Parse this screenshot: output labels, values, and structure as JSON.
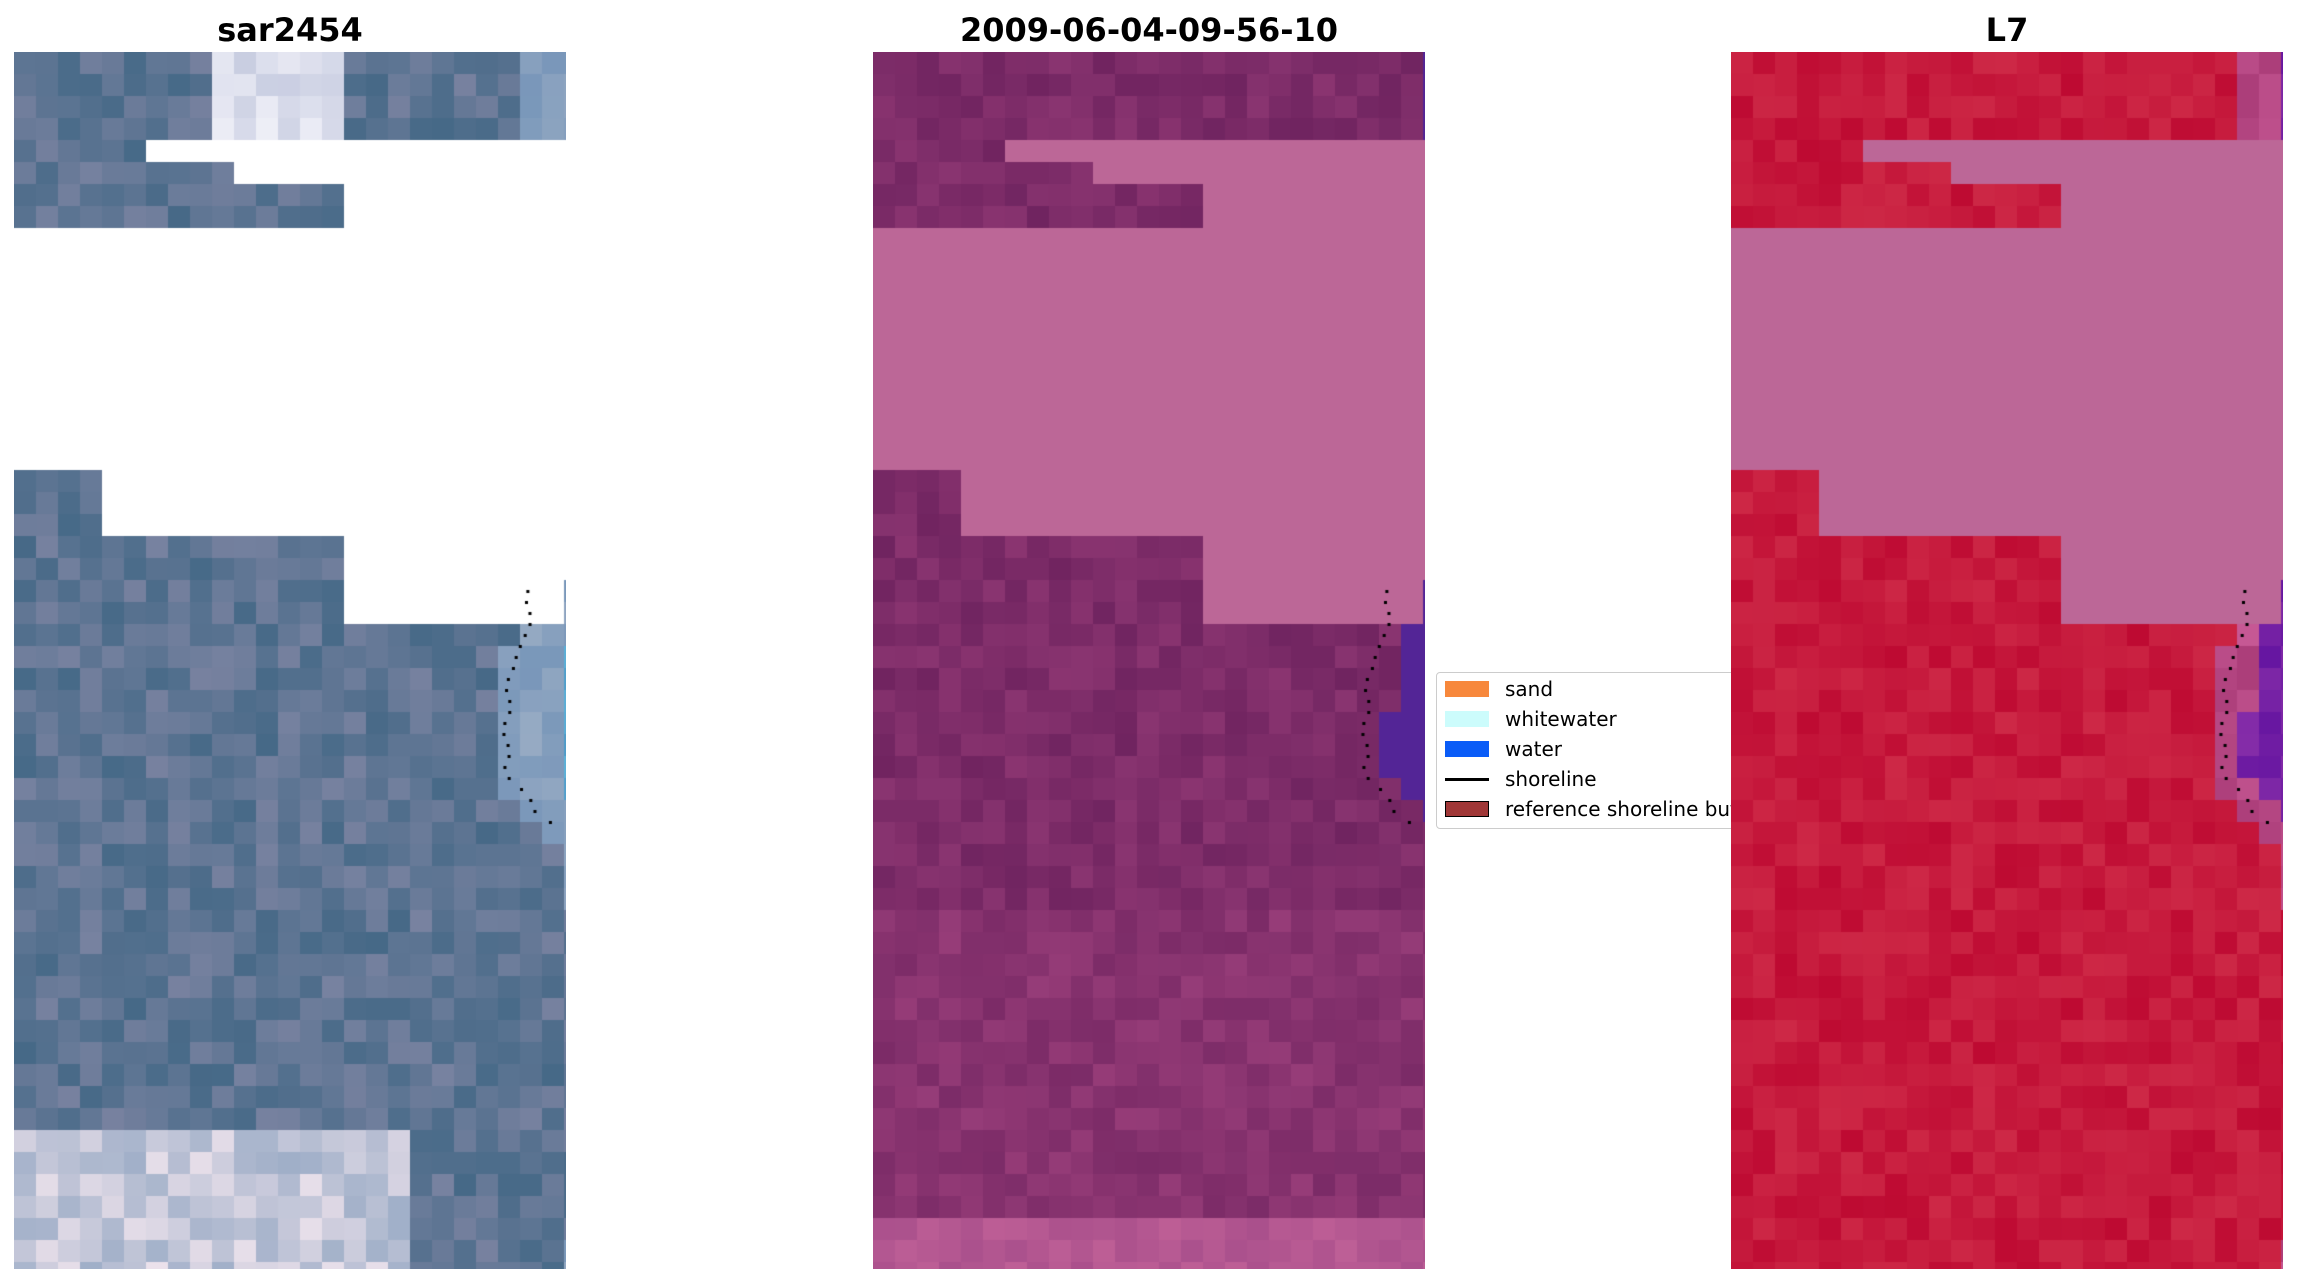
{
  "panels": [
    {
      "title": "sar2454"
    },
    {
      "title": "2009-06-04-09-56-10"
    },
    {
      "title": "L7"
    }
  ],
  "legend": {
    "items": [
      {
        "label": "sand",
        "color": "#f7883c",
        "kind": "patch"
      },
      {
        "label": "whitewater",
        "color": "#ccfcfc",
        "kind": "patch"
      },
      {
        "label": "water",
        "color": "#0a5cf7",
        "kind": "patch"
      },
      {
        "label": "shoreline",
        "color": "#000000",
        "kind": "line"
      },
      {
        "label": "reference shoreline buffer",
        "color": "#a03737",
        "kind": "patch"
      }
    ]
  },
  "colors": {
    "cloud_mask": "#bc6797",
    "classified_sand_dark": "#752664",
    "classified_water": "#532596",
    "nir_land": "#c41038",
    "nir_water": "#6a109e"
  }
}
